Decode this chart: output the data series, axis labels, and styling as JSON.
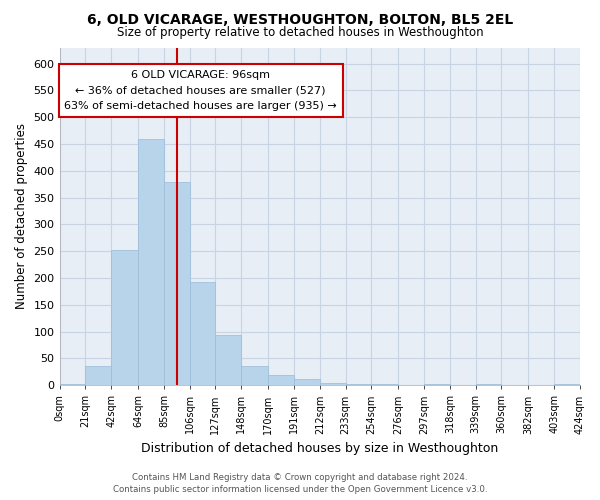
{
  "title": "6, OLD VICARAGE, WESTHOUGHTON, BOLTON, BL5 2EL",
  "subtitle": "Size of property relative to detached houses in Westhoughton",
  "xlabel": "Distribution of detached houses by size in Westhoughton",
  "ylabel": "Number of detached properties",
  "bar_color": "#b8d4ea",
  "bar_edge_color": "#9abbd8",
  "grid_color": "#c8d4e4",
  "background_color": "#ffffff",
  "plot_bg_color": "#e8eef6",
  "vline_x": 96,
  "vline_color": "#cc0000",
  "bin_edges": [
    0,
    21,
    42,
    64,
    85,
    106,
    127,
    148,
    170,
    191,
    212,
    233,
    254,
    276,
    297,
    318,
    339,
    360,
    382,
    403,
    424
  ],
  "bin_labels": [
    "0sqm",
    "21sqm",
    "42sqm",
    "64sqm",
    "85sqm",
    "106sqm",
    "127sqm",
    "148sqm",
    "170sqm",
    "191sqm",
    "212sqm",
    "233sqm",
    "254sqm",
    "276sqm",
    "297sqm",
    "318sqm",
    "339sqm",
    "360sqm",
    "382sqm",
    "403sqm",
    "424sqm"
  ],
  "bar_heights": [
    2,
    35,
    252,
    460,
    380,
    192,
    93,
    35,
    20,
    12,
    5,
    2,
    2,
    0,
    2,
    0,
    2,
    0,
    0,
    3
  ],
  "ylim": [
    0,
    630
  ],
  "yticks": [
    0,
    50,
    100,
    150,
    200,
    250,
    300,
    350,
    400,
    450,
    500,
    550,
    600
  ],
  "annotation_title": "6 OLD VICARAGE: 96sqm",
  "annotation_line1": "← 36% of detached houses are smaller (527)",
  "annotation_line2": "63% of semi-detached houses are larger (935) →",
  "annotation_box_color": "#ffffff",
  "annotation_box_edge": "#cc0000",
  "footer_line1": "Contains HM Land Registry data © Crown copyright and database right 2024.",
  "footer_line2": "Contains public sector information licensed under the Open Government Licence v3.0."
}
